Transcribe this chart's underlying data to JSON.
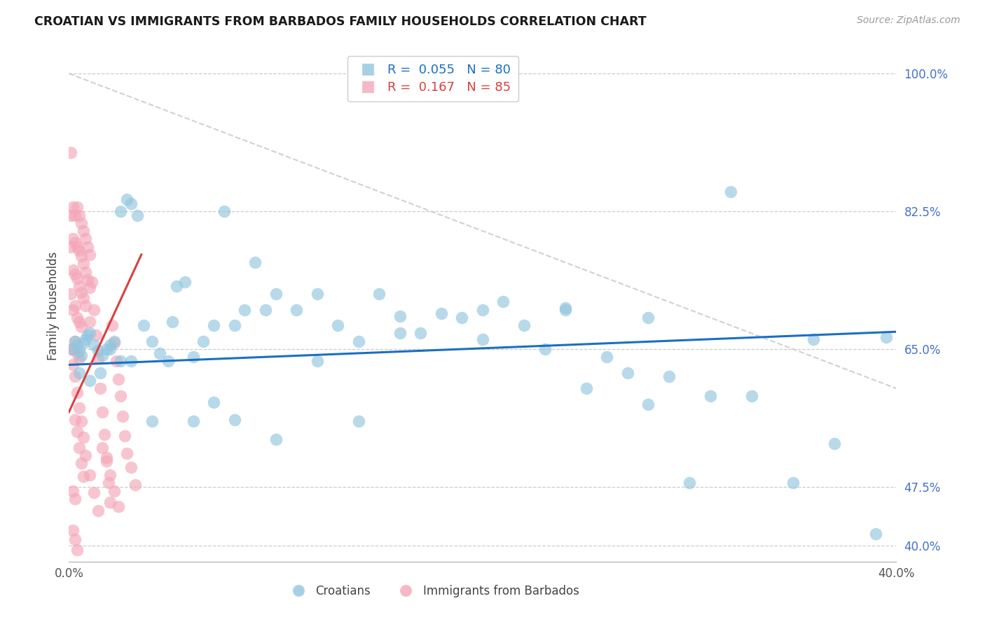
{
  "title": "CROATIAN VS IMMIGRANTS FROM BARBADOS FAMILY HOUSEHOLDS CORRELATION CHART",
  "source": "Source: ZipAtlas.com",
  "ylabel": "Family Households",
  "xlabel": "",
  "legend_label1": "Croatians",
  "legend_label2": "Immigrants from Barbados",
  "r1": 0.055,
  "n1": 80,
  "r2": 0.167,
  "n2": 85,
  "color1": "#92c5de",
  "color2": "#f4a6b8",
  "line_color1": "#1a6fc4",
  "line_color2": "#d94040",
  "xmin": 0.0,
  "xmax": 0.4,
  "ymin": 0.38,
  "ymax": 1.03,
  "right_ytick_pos": [
    0.4,
    0.475,
    0.65,
    0.825,
    1.0
  ],
  "right_ytick_labels": [
    "40.0%",
    "47.5%",
    "65.0%",
    "82.5%",
    "100.0%"
  ],
  "xtick_positions": [
    0.0,
    0.05,
    0.1,
    0.15,
    0.2,
    0.25,
    0.3,
    0.35,
    0.4
  ],
  "xtick_labels": [
    "0.0%",
    "",
    "",
    "",
    "",
    "",
    "",
    "",
    "40.0%"
  ],
  "blue_line_x": [
    0.0,
    0.4
  ],
  "blue_line_y": [
    0.63,
    0.672
  ],
  "pink_line_x": [
    0.0,
    0.035
  ],
  "pink_line_y": [
    0.57,
    0.77
  ],
  "diag_line_x": [
    0.0,
    0.4
  ],
  "diag_line_y": [
    1.0,
    0.6
  ],
  "blue_x": [
    0.002,
    0.003,
    0.004,
    0.005,
    0.006,
    0.007,
    0.008,
    0.009,
    0.01,
    0.012,
    0.014,
    0.016,
    0.018,
    0.02,
    0.022,
    0.025,
    0.028,
    0.03,
    0.033,
    0.036,
    0.04,
    0.044,
    0.048,
    0.052,
    0.056,
    0.06,
    0.065,
    0.07,
    0.075,
    0.08,
    0.085,
    0.09,
    0.095,
    0.1,
    0.11,
    0.12,
    0.13,
    0.14,
    0.15,
    0.16,
    0.17,
    0.18,
    0.19,
    0.2,
    0.21,
    0.22,
    0.23,
    0.24,
    0.25,
    0.26,
    0.27,
    0.28,
    0.29,
    0.3,
    0.31,
    0.33,
    0.35,
    0.37,
    0.39,
    0.005,
    0.01,
    0.015,
    0.02,
    0.025,
    0.03,
    0.04,
    0.05,
    0.06,
    0.07,
    0.08,
    0.1,
    0.12,
    0.14,
    0.16,
    0.2,
    0.24,
    0.28,
    0.32,
    0.36,
    0.395
  ],
  "blue_y": [
    0.65,
    0.66,
    0.655,
    0.648,
    0.642,
    0.658,
    0.662,
    0.668,
    0.67,
    0.655,
    0.648,
    0.642,
    0.65,
    0.655,
    0.66,
    0.825,
    0.84,
    0.835,
    0.82,
    0.68,
    0.66,
    0.645,
    0.635,
    0.73,
    0.735,
    0.64,
    0.66,
    0.68,
    0.825,
    0.68,
    0.7,
    0.76,
    0.7,
    0.72,
    0.7,
    0.72,
    0.68,
    0.66,
    0.72,
    0.67,
    0.67,
    0.695,
    0.69,
    0.7,
    0.71,
    0.68,
    0.65,
    0.7,
    0.6,
    0.64,
    0.62,
    0.58,
    0.615,
    0.48,
    0.59,
    0.59,
    0.48,
    0.53,
    0.415,
    0.62,
    0.61,
    0.62,
    0.65,
    0.635,
    0.635,
    0.558,
    0.685,
    0.558,
    0.582,
    0.56,
    0.535,
    0.635,
    0.558,
    0.692,
    0.662,
    0.702,
    0.69,
    0.85,
    0.662,
    0.665
  ],
  "pink_x": [
    0.001,
    0.001,
    0.001,
    0.001,
    0.001,
    0.002,
    0.002,
    0.002,
    0.002,
    0.002,
    0.003,
    0.003,
    0.003,
    0.003,
    0.003,
    0.004,
    0.004,
    0.004,
    0.004,
    0.004,
    0.005,
    0.005,
    0.005,
    0.005,
    0.005,
    0.006,
    0.006,
    0.006,
    0.006,
    0.007,
    0.007,
    0.007,
    0.008,
    0.008,
    0.008,
    0.009,
    0.009,
    0.01,
    0.01,
    0.01,
    0.011,
    0.012,
    0.013,
    0.014,
    0.015,
    0.016,
    0.017,
    0.018,
    0.019,
    0.02,
    0.021,
    0.022,
    0.023,
    0.024,
    0.025,
    0.026,
    0.027,
    0.028,
    0.03,
    0.032,
    0.002,
    0.003,
    0.004,
    0.005,
    0.006,
    0.007,
    0.008,
    0.01,
    0.012,
    0.014,
    0.016,
    0.018,
    0.02,
    0.022,
    0.024,
    0.003,
    0.004,
    0.005,
    0.006,
    0.007,
    0.002,
    0.003,
    0.004,
    0.002,
    0.003
  ],
  "pink_y": [
    0.9,
    0.82,
    0.78,
    0.72,
    0.65,
    0.83,
    0.79,
    0.75,
    0.7,
    0.65,
    0.82,
    0.785,
    0.745,
    0.705,
    0.66,
    0.83,
    0.78,
    0.74,
    0.69,
    0.645,
    0.82,
    0.775,
    0.73,
    0.685,
    0.638,
    0.81,
    0.768,
    0.722,
    0.678,
    0.8,
    0.758,
    0.715,
    0.79,
    0.748,
    0.705,
    0.78,
    0.738,
    0.77,
    0.728,
    0.685,
    0.735,
    0.7,
    0.668,
    0.638,
    0.6,
    0.57,
    0.542,
    0.512,
    0.48,
    0.455,
    0.68,
    0.658,
    0.635,
    0.612,
    0.59,
    0.565,
    0.54,
    0.518,
    0.5,
    0.478,
    0.63,
    0.615,
    0.595,
    0.575,
    0.558,
    0.538,
    0.515,
    0.49,
    0.468,
    0.445,
    0.525,
    0.508,
    0.49,
    0.47,
    0.45,
    0.56,
    0.545,
    0.525,
    0.505,
    0.488,
    0.42,
    0.408,
    0.395,
    0.47,
    0.46
  ]
}
